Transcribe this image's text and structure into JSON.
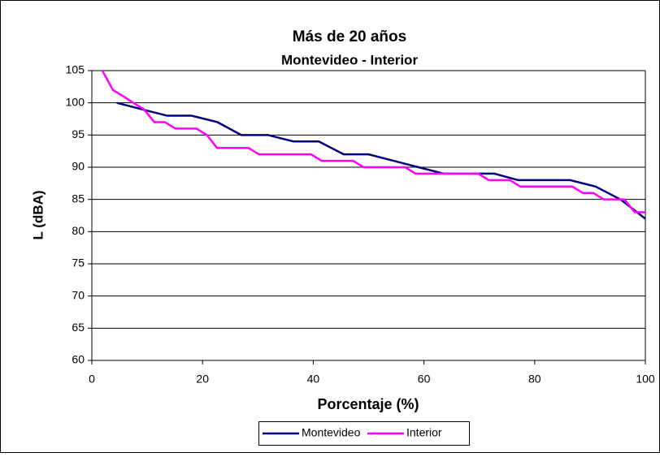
{
  "chart_data": {
    "type": "line",
    "title": "Más de 20 años",
    "subtitle": "Montevideo - Interior",
    "x_label": "Porcentaje (%)",
    "y_label": "L (dBA)",
    "xlim": [
      0,
      100
    ],
    "xticks": [
      0,
      20,
      40,
      60,
      80,
      100
    ],
    "ylim": [
      60,
      105
    ],
    "yticks": [
      60,
      65,
      70,
      75,
      80,
      85,
      90,
      95,
      100,
      105
    ],
    "grid": true,
    "legend": "bottom",
    "series": [
      {
        "name": "Montevideo",
        "color": "#000080",
        "x": [
          4.5,
          9,
          13.6,
          18,
          22.7,
          27,
          31.8,
          36.4,
          41,
          45.5,
          50,
          54.5,
          59,
          63.6,
          68,
          72.7,
          77,
          81.8,
          86.4,
          91,
          95.5,
          100
        ],
        "values": [
          100,
          99,
          98,
          98,
          97,
          95,
          95,
          94,
          94,
          92,
          92,
          91,
          90,
          89,
          89,
          89,
          88,
          88,
          88,
          87,
          85,
          82
        ]
      },
      {
        "name": "Interior",
        "color": "#ff00ff",
        "x": [
          1.9,
          3.8,
          5.7,
          7.5,
          9.4,
          11.3,
          13.2,
          15.1,
          17,
          18.9,
          20.8,
          22.6,
          24.5,
          26.4,
          28.3,
          30.2,
          32.1,
          34,
          35.8,
          37.7,
          39.6,
          41.5,
          43.4,
          45.3,
          47.2,
          49.1,
          50.9,
          52.8,
          54.7,
          56.6,
          58.5,
          60.4,
          62.3,
          64.2,
          66,
          67.9,
          69.8,
          71.7,
          73.6,
          75.5,
          77.4,
          79.2,
          81.1,
          83,
          84.9,
          86.8,
          88.7,
          90.6,
          92.5,
          94.3,
          96.2,
          98.1,
          100
        ],
        "values": [
          105,
          102,
          101,
          100,
          99,
          97,
          97,
          96,
          96,
          96,
          95,
          93,
          93,
          93,
          93,
          92,
          92,
          92,
          92,
          92,
          92,
          91,
          91,
          91,
          91,
          90,
          90,
          90,
          90,
          90,
          89,
          89,
          89,
          89,
          89,
          89,
          89,
          88,
          88,
          88,
          87,
          87,
          87,
          87,
          87,
          87,
          86,
          86,
          85,
          85,
          85,
          83,
          83
        ]
      }
    ]
  }
}
